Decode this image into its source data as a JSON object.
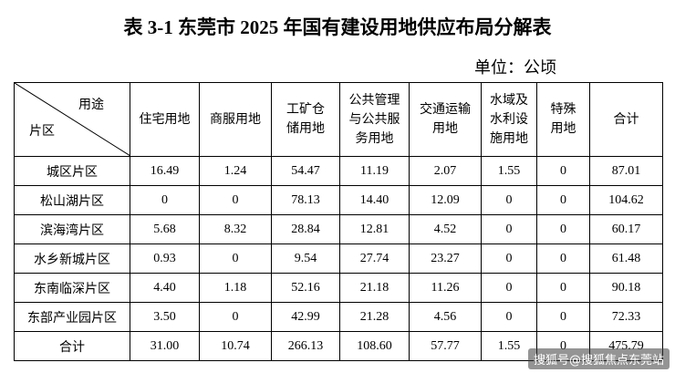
{
  "header": {
    "title": "表 3-1 东莞市 2025 年国有建设用地供应布局分解表",
    "unit": "单位：公顷"
  },
  "table": {
    "corner_top": "用途",
    "corner_bottom": "片区",
    "columns": [
      [
        "住宅用地"
      ],
      [
        "商服用地"
      ],
      [
        "工矿仓",
        "储用地"
      ],
      [
        "公共管理",
        "与公共服",
        "务用地"
      ],
      [
        "交通运输",
        "用地"
      ],
      [
        "水域及",
        "水利设",
        "施用地"
      ],
      [
        "特殊",
        "用地"
      ],
      [
        "合计"
      ]
    ],
    "rows": [
      [
        "城区片区",
        "16.49",
        "1.24",
        "54.47",
        "11.19",
        "2.07",
        "1.55",
        "0",
        "87.01"
      ],
      [
        "松山湖片区",
        "0",
        "0",
        "78.13",
        "14.40",
        "12.09",
        "0",
        "0",
        "104.62"
      ],
      [
        "滨海湾片区",
        "5.68",
        "8.32",
        "28.84",
        "12.81",
        "4.52",
        "0",
        "0",
        "60.17"
      ],
      [
        "水乡新城片区",
        "0.93",
        "0",
        "9.54",
        "27.74",
        "23.27",
        "0",
        "0",
        "61.48"
      ],
      [
        "东南临深片区",
        "4.40",
        "1.18",
        "52.16",
        "21.18",
        "11.26",
        "0",
        "0",
        "90.18"
      ],
      [
        "东部产业园片区",
        "3.50",
        "0",
        "42.99",
        "21.28",
        "4.56",
        "0",
        "0",
        "72.33"
      ],
      [
        "合计",
        "31.00",
        "10.74",
        "266.13",
        "108.60",
        "57.77",
        "1.55",
        "0",
        "475.79"
      ]
    ]
  },
  "watermark": "搜狐号@搜狐焦点东莞站"
}
